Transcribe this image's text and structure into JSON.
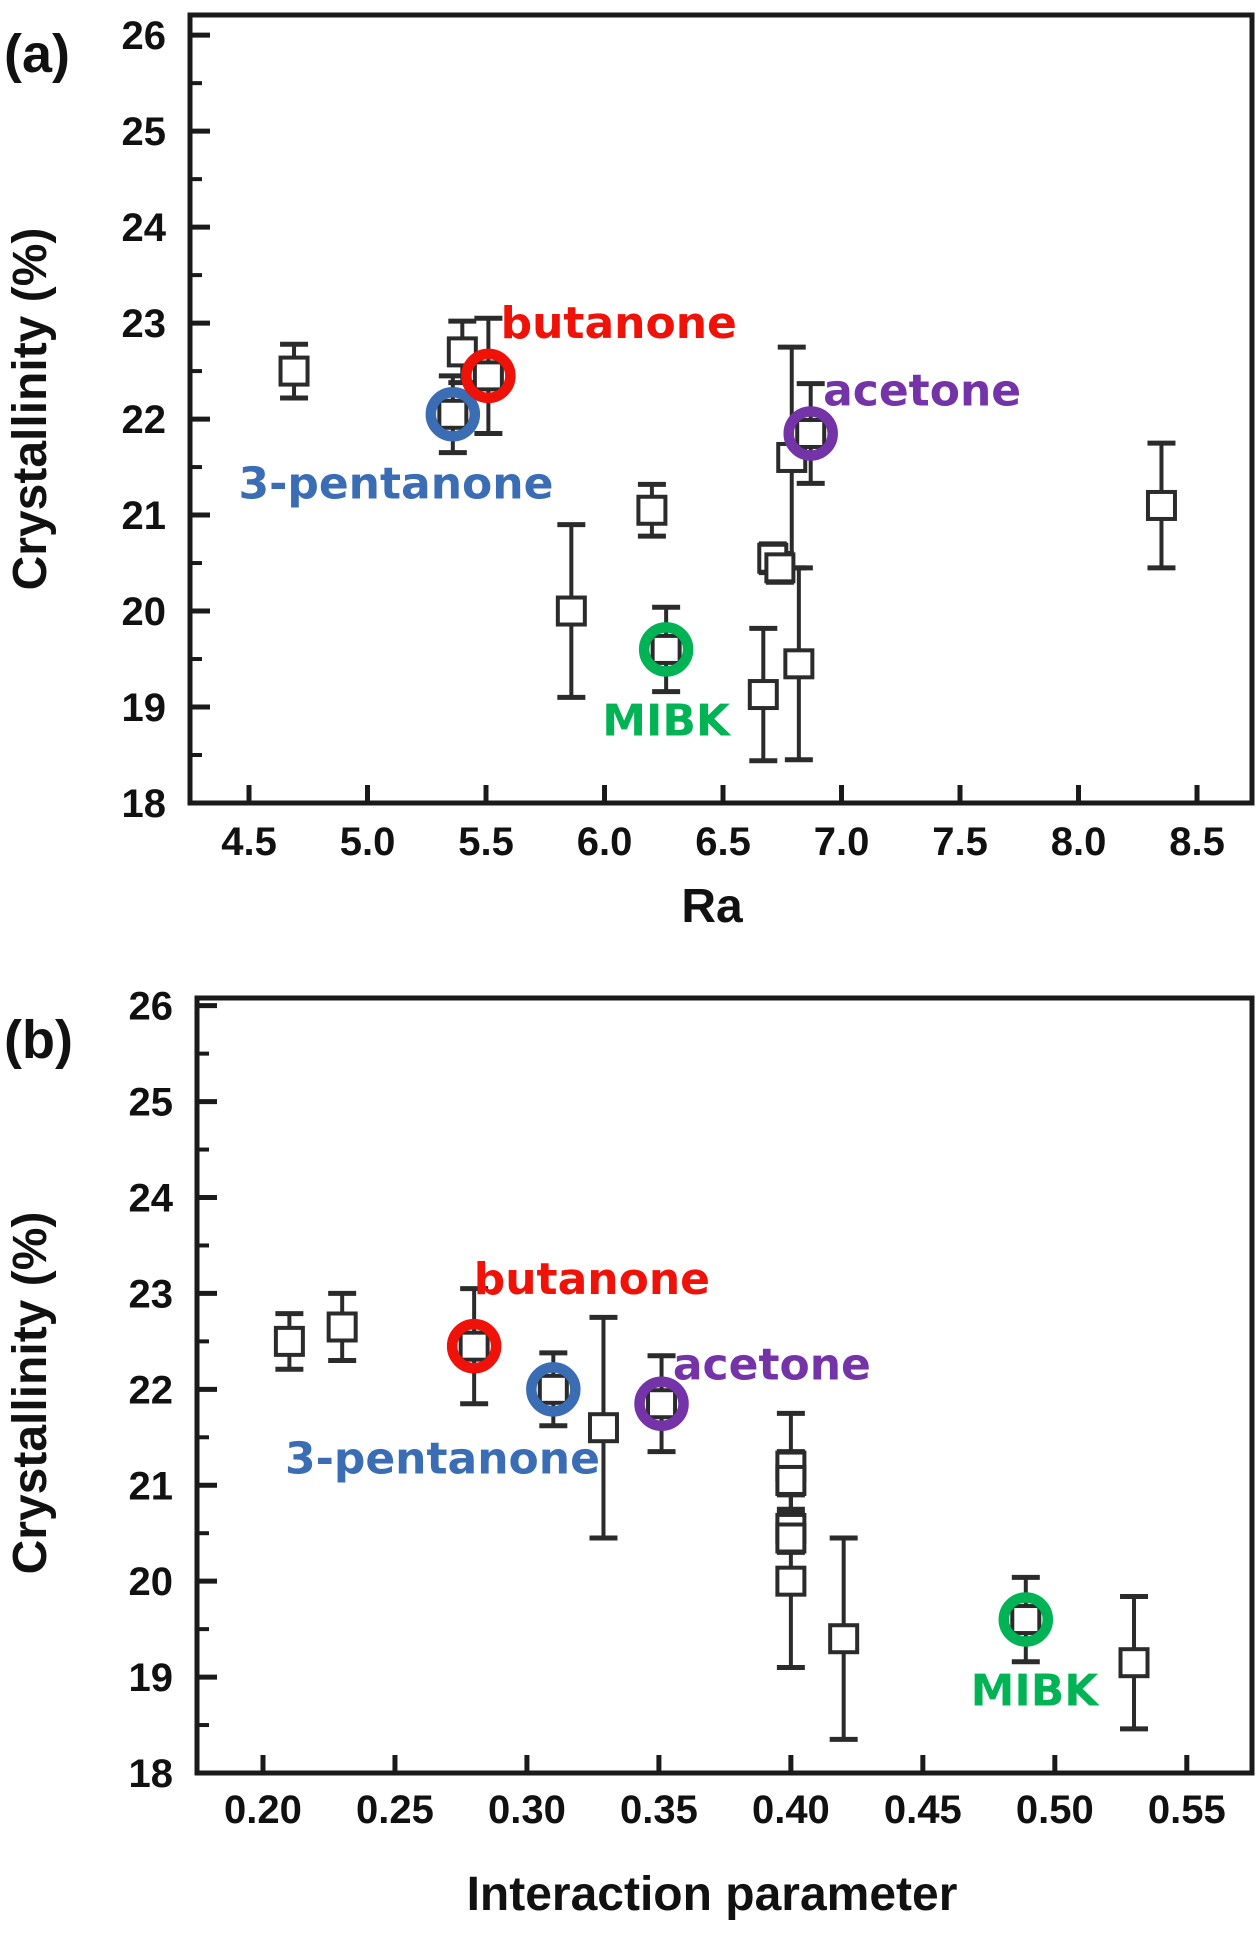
{
  "panels": {
    "a": {
      "tag": "(a)"
    },
    "b": {
      "tag": "(b)"
    }
  },
  "colors": {
    "red": "#ee1209",
    "blue": "#3a6db4",
    "purple": "#7434a8",
    "green": "#00b455",
    "axis": "#1a1a1a",
    "marker": "#2b2b2b",
    "marker_fill": "#ffffff"
  },
  "chart_data": [
    {
      "id": "a",
      "type": "scatter",
      "panel_tag": "(a)",
      "xlabel": "Ra",
      "ylabel": "Crystallinity (%)",
      "xlim": [
        4.251,
        8.732
      ],
      "ylim": [
        18,
        26.21
      ],
      "xticks": [
        4.5,
        5.0,
        5.5,
        6.0,
        6.5,
        7.0,
        7.5,
        8.0,
        8.5
      ],
      "xtick_labels": [
        "4.5",
        "5.0",
        "5.5",
        "6.0",
        "6.5",
        "7.0",
        "7.5",
        "8.0",
        "8.5"
      ],
      "yticks": [
        18,
        19,
        20,
        21,
        22,
        23,
        24,
        25,
        26
      ],
      "ytick_labels": [
        "18",
        "19",
        "20",
        "21",
        "22",
        "23",
        "24",
        "25",
        "26"
      ],
      "ytick_minor": [
        18.5,
        19.5,
        20.5,
        21.5,
        22.5,
        23.5,
        24.5,
        25.5
      ],
      "grid": false,
      "legend": "none",
      "points": [
        {
          "x": 4.69,
          "y": 22.5,
          "err": 0.28
        },
        {
          "x": 5.4,
          "y": 22.7,
          "err": 0.32
        },
        {
          "x": 5.36,
          "y": 22.05,
          "err": 0.4,
          "ring": "blue",
          "name": "3-pentanone"
        },
        {
          "x": 5.51,
          "y": 22.45,
          "err": 0.6,
          "ring": "red",
          "name": "butanone"
        },
        {
          "x": 5.86,
          "y": 20.0,
          "err": 0.9
        },
        {
          "x": 6.2,
          "y": 21.05,
          "err": 0.27
        },
        {
          "x": 6.26,
          "y": 19.6,
          "err": 0.44,
          "ring": "green",
          "name": "MIBK"
        },
        {
          "x": 6.67,
          "y": 19.13,
          "err": 0.69
        },
        {
          "x": 6.71,
          "y": 20.55,
          "err": 0.15
        },
        {
          "x": 6.74,
          "y": 20.45,
          "err": 0.15
        },
        {
          "x": 6.79,
          "y": 21.6,
          "err": 1.15
        },
        {
          "x": 6.87,
          "y": 21.85,
          "err": 0.52,
          "ring": "purple",
          "name": "acetone"
        },
        {
          "x": 6.82,
          "y": 19.45,
          "err": 1.0
        },
        {
          "x": 8.35,
          "y": 21.1,
          "err": 0.65
        }
      ],
      "annotations": [
        {
          "text": "butanone",
          "x": 6.06,
          "y": 23.0,
          "color": "red"
        },
        {
          "text": "3-pentanone",
          "x": 5.12,
          "y": 21.33,
          "color": "blue"
        },
        {
          "text": "acetone",
          "x": 7.34,
          "y": 22.3,
          "color": "purple"
        },
        {
          "text": "MIBK",
          "x": 6.26,
          "y": 18.86,
          "color": "green"
        }
      ]
    },
    {
      "id": "b",
      "type": "scatter",
      "panel_tag": "(b)",
      "xlabel": "Interaction parameter",
      "ylabel": "Crystallinity (%)",
      "xlim": [
        0.175,
        0.5747
      ],
      "ylim": [
        18,
        26.08
      ],
      "xticks": [
        0.2,
        0.25,
        0.3,
        0.35,
        0.4,
        0.45,
        0.5,
        0.55
      ],
      "xtick_labels": [
        "0.20",
        "0.25",
        "0.30",
        "0.35",
        "0.40",
        "0.45",
        "0.50",
        "0.55"
      ],
      "yticks": [
        18,
        19,
        20,
        21,
        22,
        23,
        24,
        25,
        26
      ],
      "ytick_labels": [
        "18",
        "19",
        "20",
        "21",
        "22",
        "23",
        "24",
        "25",
        "26"
      ],
      "ytick_minor": [
        18.5,
        19.5,
        20.5,
        21.5,
        22.5,
        23.5,
        24.5,
        25.5
      ],
      "grid": false,
      "legend": "none",
      "points": [
        {
          "x": 0.21,
          "y": 22.5,
          "err": 0.29
        },
        {
          "x": 0.23,
          "y": 22.65,
          "err": 0.35
        },
        {
          "x": 0.28,
          "y": 22.45,
          "err": 0.6,
          "ring": "red",
          "name": "butanone"
        },
        {
          "x": 0.31,
          "y": 22.0,
          "err": 0.38,
          "ring": "blue",
          "name": "3-pentanone"
        },
        {
          "x": 0.329,
          "y": 21.6,
          "err": 1.15
        },
        {
          "x": 0.351,
          "y": 21.85,
          "err": 0.5,
          "ring": "purple",
          "name": "acetone"
        },
        {
          "x": 0.4,
          "y": 21.2,
          "err": 0.55
        },
        {
          "x": 0.4,
          "y": 21.05,
          "err": 0.3
        },
        {
          "x": 0.4,
          "y": 20.55,
          "err": 0.15
        },
        {
          "x": 0.4,
          "y": 20.45,
          "err": 0.15
        },
        {
          "x": 0.4,
          "y": 20.0,
          "err": 0.9
        },
        {
          "x": 0.42,
          "y": 19.4,
          "err": 1.05
        },
        {
          "x": 0.489,
          "y": 19.6,
          "err": 0.44,
          "ring": "green",
          "name": "MIBK"
        },
        {
          "x": 0.53,
          "y": 19.15,
          "err": 0.69
        }
      ],
      "annotations": [
        {
          "text": "butanone",
          "x": 0.3246,
          "y": 23.15,
          "color": "red"
        },
        {
          "text": "3-pentanone",
          "x": 0.268,
          "y": 21.28,
          "color": "blue"
        },
        {
          "text": "acetone",
          "x": 0.3928,
          "y": 22.26,
          "color": "purple"
        },
        {
          "text": "MIBK",
          "x": 0.4923,
          "y": 18.86,
          "color": "green"
        }
      ]
    }
  ]
}
